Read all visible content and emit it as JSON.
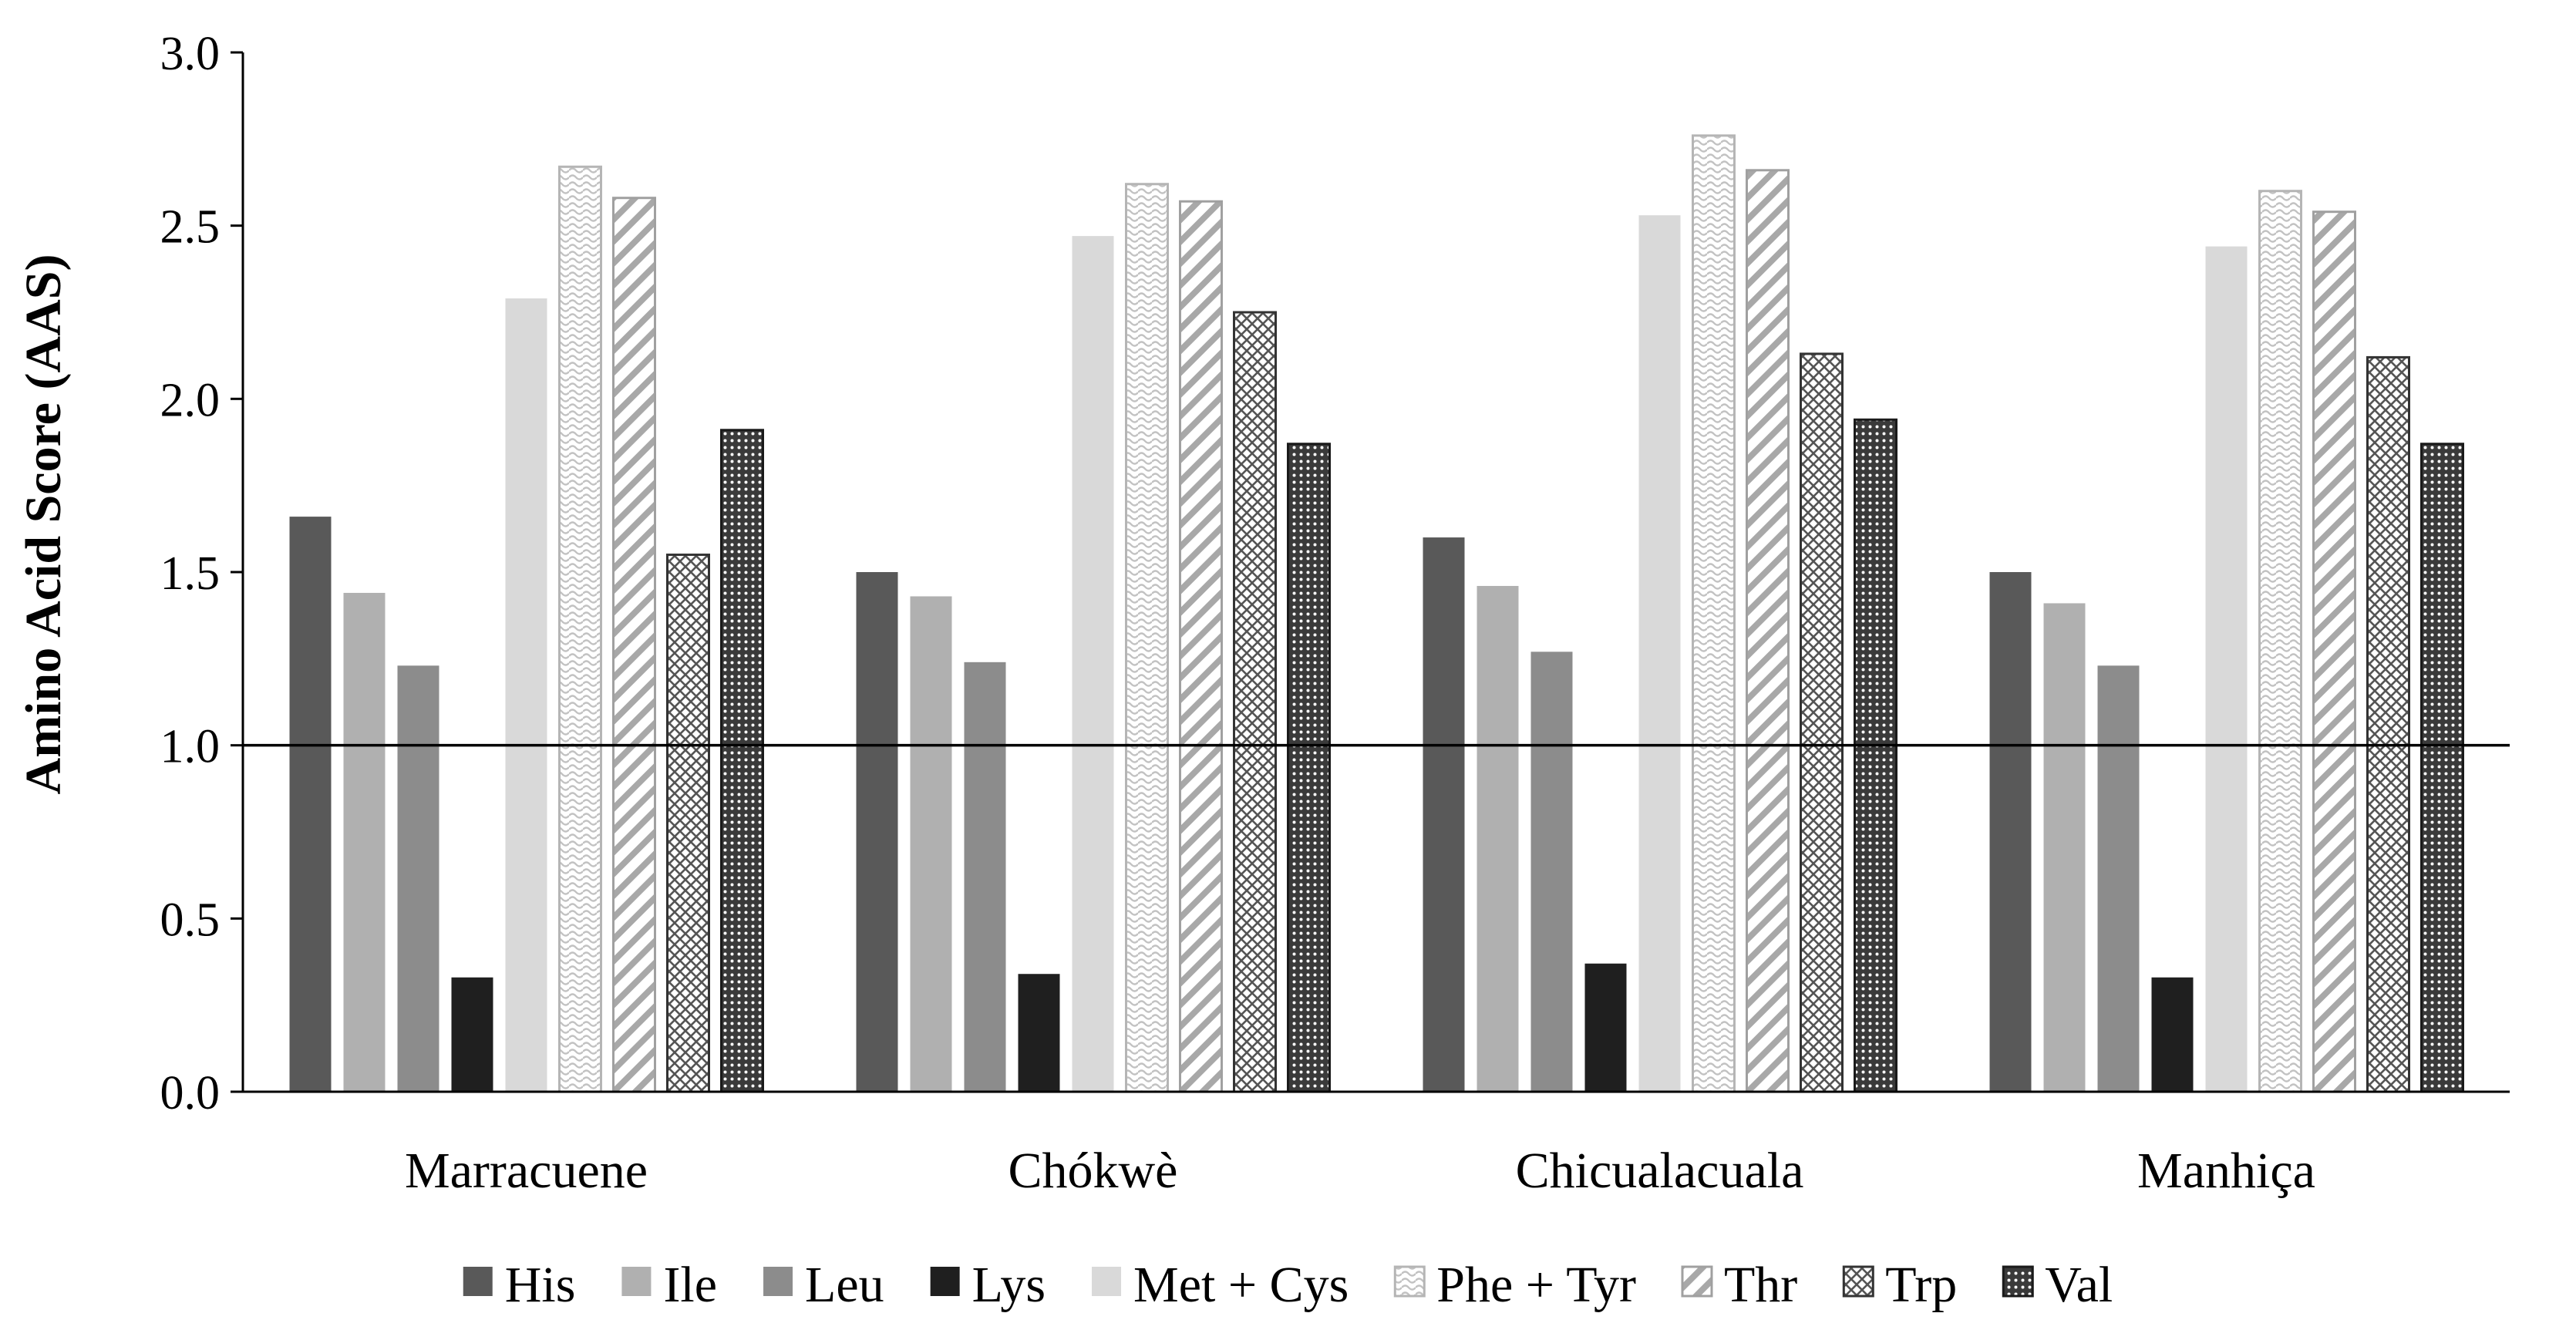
{
  "chart_data": {
    "type": "bar",
    "title": "",
    "xlabel": "",
    "ylabel": "Amino Acid Score (AAS)",
    "ylim": [
      0,
      3.0
    ],
    "yticks": [
      "0.0",
      "0.5",
      "1.0",
      "1.5",
      "2.0",
      "2.5",
      "3.0"
    ],
    "reference_line": 1.0,
    "legend_position": "bottom",
    "categories": [
      "Marracuene",
      "Chókwè",
      "Chicualacuala",
      "Manhiça"
    ],
    "series": [
      {
        "name": "His",
        "values": [
          1.66,
          1.5,
          1.6,
          1.5
        ],
        "color": "#595959",
        "pattern": "solid-dark"
      },
      {
        "name": "Ile",
        "values": [
          1.44,
          1.43,
          1.46,
          1.41
        ],
        "color": "#b0b0b0",
        "pattern": "solid-light"
      },
      {
        "name": "Leu",
        "values": [
          1.23,
          1.24,
          1.27,
          1.23
        ],
        "color": "#8c8c8c",
        "pattern": "solid-mid"
      },
      {
        "name": "Lys",
        "values": [
          0.33,
          0.34,
          0.37,
          0.33
        ],
        "color": "#1f1f1f",
        "pattern": "solid-black"
      },
      {
        "name": "Met + Cys",
        "values": [
          2.29,
          2.47,
          2.53,
          2.44
        ],
        "color": "#d9d9d9",
        "pattern": "solid-pale"
      },
      {
        "name": "Phe + Tyr",
        "values": [
          2.67,
          2.62,
          2.76,
          2.6
        ],
        "color": "#bfbfbf",
        "pattern": "wave"
      },
      {
        "name": "Thr",
        "values": [
          2.58,
          2.57,
          2.66,
          2.54
        ],
        "color": "#a6a6a6",
        "pattern": "diagonal"
      },
      {
        "name": "Trp",
        "values": [
          1.55,
          2.25,
          2.13,
          2.12
        ],
        "color": "#595959",
        "pattern": "crosshatch"
      },
      {
        "name": "Val",
        "values": [
          1.91,
          1.87,
          1.94,
          1.87
        ],
        "color": "#262626",
        "pattern": "dots"
      }
    ]
  }
}
